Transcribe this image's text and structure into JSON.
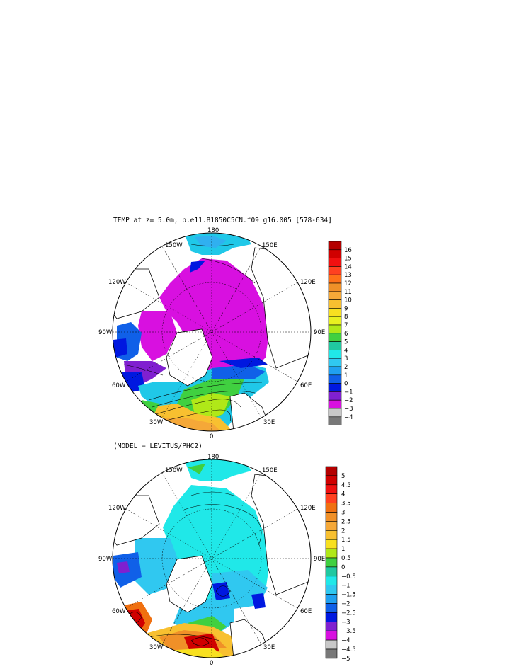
{
  "top_panel": {
    "title": "TEMP at z=   5.0m, b.e11.B1850C5CN.f09_g16.005 [578-634]",
    "lon_labels": {
      "n180": "180",
      "w150": "150W",
      "e150": "150E",
      "w120": "120W",
      "e120": "120E",
      "w90": "90W",
      "e90": "90E",
      "w60": "60W",
      "e60": "60E",
      "w30": "30W",
      "e30": "30E",
      "s0": "0"
    },
    "colorbar": {
      "labels": [
        "16",
        "15",
        "14",
        "13",
        "12",
        "11",
        "10",
        "9",
        "8",
        "7",
        "6",
        "5",
        "4",
        "3",
        "2",
        "1",
        "0",
        "−1",
        "−2",
        "−3",
        "−4"
      ],
      "colors": [
        "#b40000",
        "#d00000",
        "#f01010",
        "#ff4020",
        "#ff7018",
        "#f09028",
        "#f5a838",
        "#f8c030",
        "#f8e020",
        "#e8f020",
        "#b0e818",
        "#40d040",
        "#20c8a0",
        "#20e8e8",
        "#30c8f0",
        "#20a0f0",
        "#1060e8",
        "#0018e0",
        "#8020d0",
        "#d810e0",
        "#c8c8c8",
        "#787878"
      ]
    }
  },
  "bottom_panel": {
    "title": "(MODEL − LEVITUS/PHC2)",
    "lon_labels": {
      "n180": "180",
      "w150": "150W",
      "e150": "150E",
      "w120": "120W",
      "e120": "120E",
      "w90": "90W",
      "e90": "90E",
      "w60": "60W",
      "e60": "60E",
      "w30": "30W",
      "e30": "30E",
      "s0": "0"
    },
    "colorbar": {
      "labels": [
        "5",
        "4.5",
        "4",
        "3.5",
        "3",
        "2.5",
        "2",
        "1.5",
        "1",
        "0.5",
        "0",
        "−0.5",
        "−1",
        "−1.5",
        "−2",
        "−2.5",
        "−3",
        "−3.5",
        "−4",
        "−4.5",
        "−5"
      ],
      "colors": [
        "#b40000",
        "#d00000",
        "#f01010",
        "#ff4020",
        "#f07010",
        "#f09028",
        "#f5a838",
        "#f8c030",
        "#f8e020",
        "#b0e818",
        "#40d040",
        "#20c8a0",
        "#20e8e8",
        "#30c8f0",
        "#20a0f0",
        "#1060e8",
        "#0018e0",
        "#8020d0",
        "#d810e0",
        "#c8c8c8",
        "#787878"
      ]
    }
  }
}
